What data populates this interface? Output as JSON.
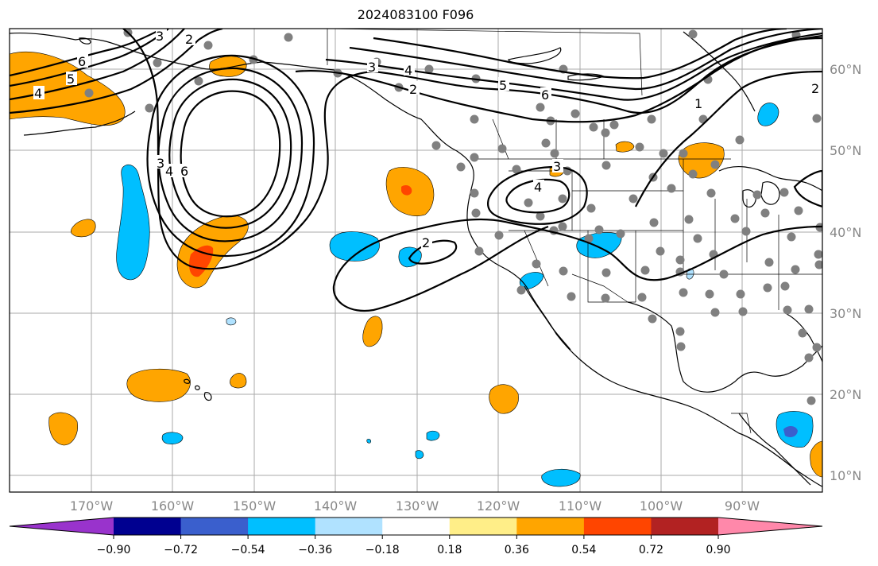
{
  "title": "2024083100 F096",
  "latitude_labels": [
    "60°N",
    "50°N",
    "40°N",
    "30°N",
    "20°N",
    "10°N"
  ],
  "longitude_labels": [
    "170°W",
    "160°W",
    "150°W",
    "140°W",
    "130°W",
    "120°W",
    "110°W",
    "100°W",
    "90°W"
  ],
  "colorbar": {
    "colors": [
      "#9933cc",
      "#000090",
      "#3a5fcd",
      "#00bfff",
      "#b0e2ff",
      "#ffffff",
      "#ffee88",
      "#ffa500",
      "#ff4500",
      "#b22222",
      "#ff88aa"
    ],
    "tick_labels": [
      "−0.90",
      "−0.72",
      "−0.54",
      "−0.36",
      "−0.18",
      "0.18",
      "0.36",
      "0.54",
      "0.72",
      "0.90"
    ]
  },
  "contour_labels": [
    "6",
    "5",
    "4",
    "3",
    "2",
    "2",
    "3",
    "4",
    "5",
    "6",
    "1",
    "3",
    "4",
    "6",
    "2",
    "3",
    "4",
    "2"
  ],
  "colors": {
    "land_outline": "#000000",
    "gridline": "#aaaaaa",
    "station_marker": "#808080",
    "contour": "#000000"
  }
}
